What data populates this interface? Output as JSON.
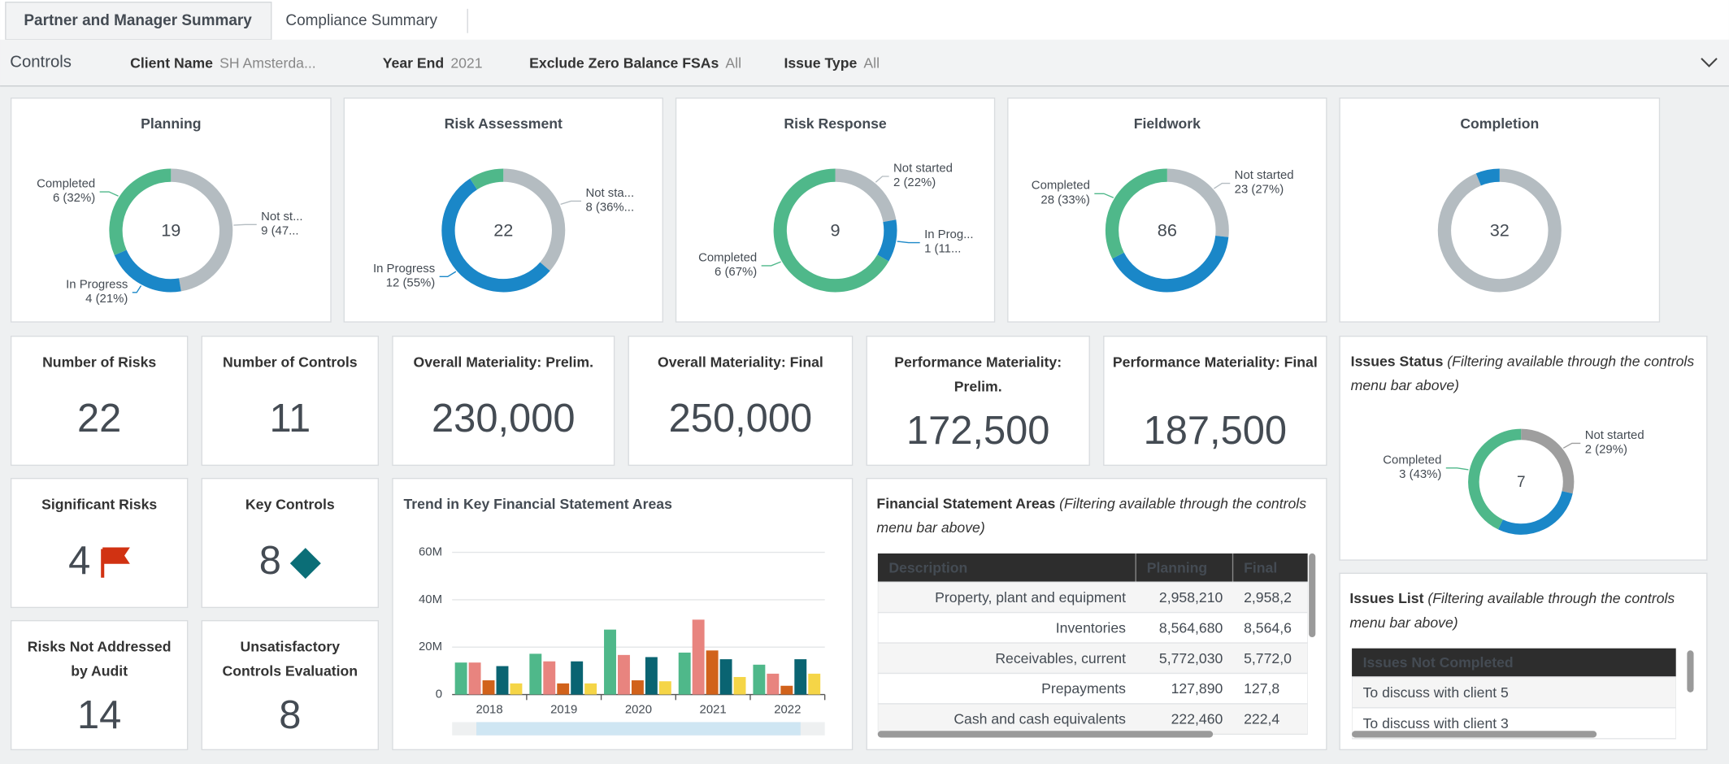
{
  "tabs": [
    "Partner and Manager Summary",
    "Compliance Summary"
  ],
  "controls": {
    "title": "Controls",
    "filters": [
      {
        "label": "Client Name",
        "value": "SH Amsterda..."
      },
      {
        "label": "Year End",
        "value": "2021"
      },
      {
        "label": "Exclude Zero Balance FSAs",
        "value": "All"
      },
      {
        "label": "Issue Type",
        "value": "All"
      }
    ]
  },
  "chart_data": [
    {
      "type": "donut",
      "title": "Planning",
      "total": 19,
      "categories": [
        "Not st...",
        "In Progress",
        "Completed"
      ],
      "values": [
        9,
        4,
        6
      ],
      "value_labels": [
        "9 (47...",
        "4 (21%)",
        "6 (32%)"
      ],
      "colors": [
        "#b4bcc1",
        "#1a87c8",
        "#4fb88a"
      ]
    },
    {
      "type": "donut",
      "title": "Risk Assessment",
      "total": 22,
      "categories": [
        "Not sta...",
        "In Progress",
        null
      ],
      "values": [
        8,
        12,
        2
      ],
      "value_labels": [
        "8 (36%...",
        "12 (55%)",
        null
      ],
      "colors": [
        "#b4bcc1",
        "#1a87c8",
        "#4fb88a"
      ]
    },
    {
      "type": "donut",
      "title": "Risk Response",
      "total": 9,
      "categories": [
        "Not started",
        "In Prog...",
        "Completed"
      ],
      "values": [
        2,
        1,
        6
      ],
      "value_labels": [
        "2 (22%)",
        "1 (11...",
        "6 (67%)"
      ],
      "colors": [
        "#b4bcc1",
        "#1a87c8",
        "#4fb88a"
      ]
    },
    {
      "type": "donut",
      "title": "Fieldwork",
      "total": 86,
      "categories": [
        "Not started",
        null,
        "Completed"
      ],
      "values": [
        23,
        35,
        28
      ],
      "value_labels": [
        "23 (27%)",
        null,
        "28 (33%)"
      ],
      "colors": [
        "#b4bcc1",
        "#1a87c8",
        "#4fb88a"
      ]
    },
    {
      "type": "donut",
      "title": "Completion",
      "total": 32,
      "categories": [
        null,
        null,
        null
      ],
      "values": [
        30,
        2,
        0
      ],
      "value_labels": [
        null,
        null,
        null
      ],
      "colors": [
        "#b4bcc1",
        "#1a87c8",
        "#4fb88a"
      ]
    },
    {
      "type": "donut",
      "title": "Issues Status",
      "note": "(Filtering available through the controls menu bar above)",
      "total": 7,
      "categories": [
        "Not started",
        null,
        "Completed"
      ],
      "values": [
        2,
        2,
        3
      ],
      "value_labels": [
        "2 (29%)",
        null,
        "3 (43%)"
      ],
      "colors": [
        "#9e9e9e",
        "#1a87c8",
        "#4fb88a"
      ]
    },
    {
      "type": "bar",
      "title": "Trend in Key Financial Statement Areas",
      "categories": [
        "2018",
        "2019",
        "2020",
        "2021",
        "2022"
      ],
      "series": [
        {
          "color": "#4fb88a",
          "values": [
            13500000,
            17200000,
            27400000,
            17700000,
            12600000
          ]
        },
        {
          "color": "#e8847f",
          "values": [
            13500000,
            14000000,
            16700000,
            31600000,
            8800000
          ]
        },
        {
          "color": "#d1621b",
          "values": [
            6000000,
            4700000,
            6000000,
            18600000,
            3700000
          ]
        },
        {
          "color": "#0a6472",
          "values": [
            12000000,
            14000000,
            15800000,
            14900000,
            14900000
          ]
        },
        {
          "color": "#f5d547",
          "values": [
            4700000,
            4700000,
            5600000,
            7400000,
            8800000
          ]
        }
      ],
      "ylim": [
        0,
        60000000
      ],
      "yticks": [
        0,
        {
          "value": 20000000,
          "label": "20M"
        },
        {
          "value": 40000000,
          "label": "40M"
        },
        {
          "value": 60000000,
          "label": "60M"
        }
      ],
      "grid": true
    }
  ],
  "kpis": [
    {
      "title": "Number of Risks",
      "value": "22"
    },
    {
      "title": "Number of Controls",
      "value": "11"
    },
    {
      "title": "Overall Materiality: Prelim.",
      "value": "230,000"
    },
    {
      "title": "Overall Materiality: Final",
      "value": "250,000"
    },
    {
      "title": "Performance Materiality: Prelim.",
      "value": "172,500"
    },
    {
      "title": "Performance Materiality: Final",
      "value": "187,500"
    },
    {
      "title": "Significant Risks",
      "value": "4"
    },
    {
      "title": "Key Controls",
      "value": "8"
    },
    {
      "title": "Risks Not Addressed by Audit",
      "value": "14",
      "color": "#d13212"
    },
    {
      "title": "Unsatisfactory Controls Evaluation",
      "value": "8",
      "color": "#d13212"
    }
  ],
  "fsa_table": {
    "title": "Financial Statement Areas",
    "note": "(Filtering available through the controls menu bar above)",
    "columns": [
      "Description",
      "Planning",
      "Final"
    ],
    "rows": [
      [
        "Property, plant and equipment",
        "2,958,210",
        "2,958,2"
      ],
      [
        "Inventories",
        "8,564,680",
        "8,564,6"
      ],
      [
        "Receivables, current",
        "5,772,030",
        "5,772,0"
      ],
      [
        "Prepayments",
        "127,890",
        "127,8"
      ],
      [
        "Cash and cash equivalents",
        "222,460",
        "222,4"
      ]
    ]
  },
  "issues_list": {
    "title": "Issues List",
    "note": "(Filtering available through the controls menu bar above)",
    "columns": [
      "Issues Not Completed"
    ],
    "rows": [
      [
        "To discuss with client 5"
      ],
      [
        "To discuss with client 3"
      ]
    ]
  }
}
